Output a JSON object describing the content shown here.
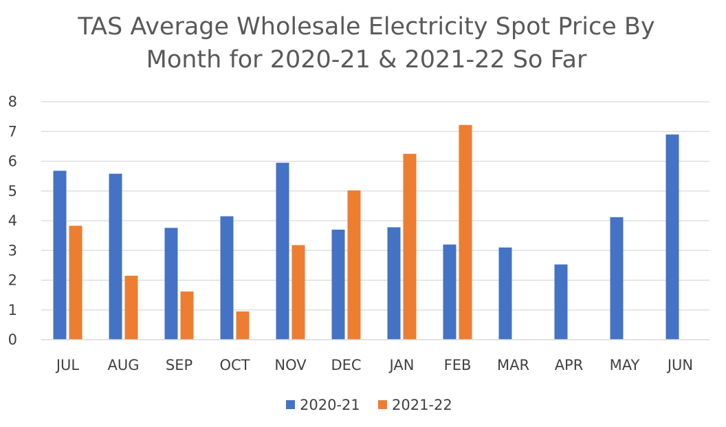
{
  "chart_data": {
    "type": "bar",
    "title_lines": [
      "TAS Average Wholesale Electricity Spot Price By",
      "Month for 2020-21 & 2021-22 So Far"
    ],
    "categories": [
      "JUL",
      "AUG",
      "SEP",
      "OCT",
      "NOV",
      "DEC",
      "JAN",
      "FEB",
      "MAR",
      "APR",
      "MAY",
      "JUN"
    ],
    "series": [
      {
        "name": "2020-21",
        "color": "#4472c4",
        "values": [
          5.68,
          5.58,
          3.76,
          4.15,
          5.95,
          3.7,
          3.78,
          3.2,
          3.1,
          2.53,
          4.12,
          6.9
        ]
      },
      {
        "name": "2021-22",
        "color": "#ed7d31",
        "values": [
          3.83,
          2.15,
          1.62,
          0.95,
          3.18,
          5.02,
          6.25,
          7.22,
          null,
          null,
          null,
          null
        ]
      }
    ],
    "ylim": [
      0,
      8
    ],
    "yticks": [
      "0",
      "1",
      "2",
      "3",
      "4",
      "5",
      "6",
      "7",
      "8"
    ],
    "xlabel": "",
    "ylabel": "",
    "grid": true,
    "legend_position": "bottom"
  }
}
